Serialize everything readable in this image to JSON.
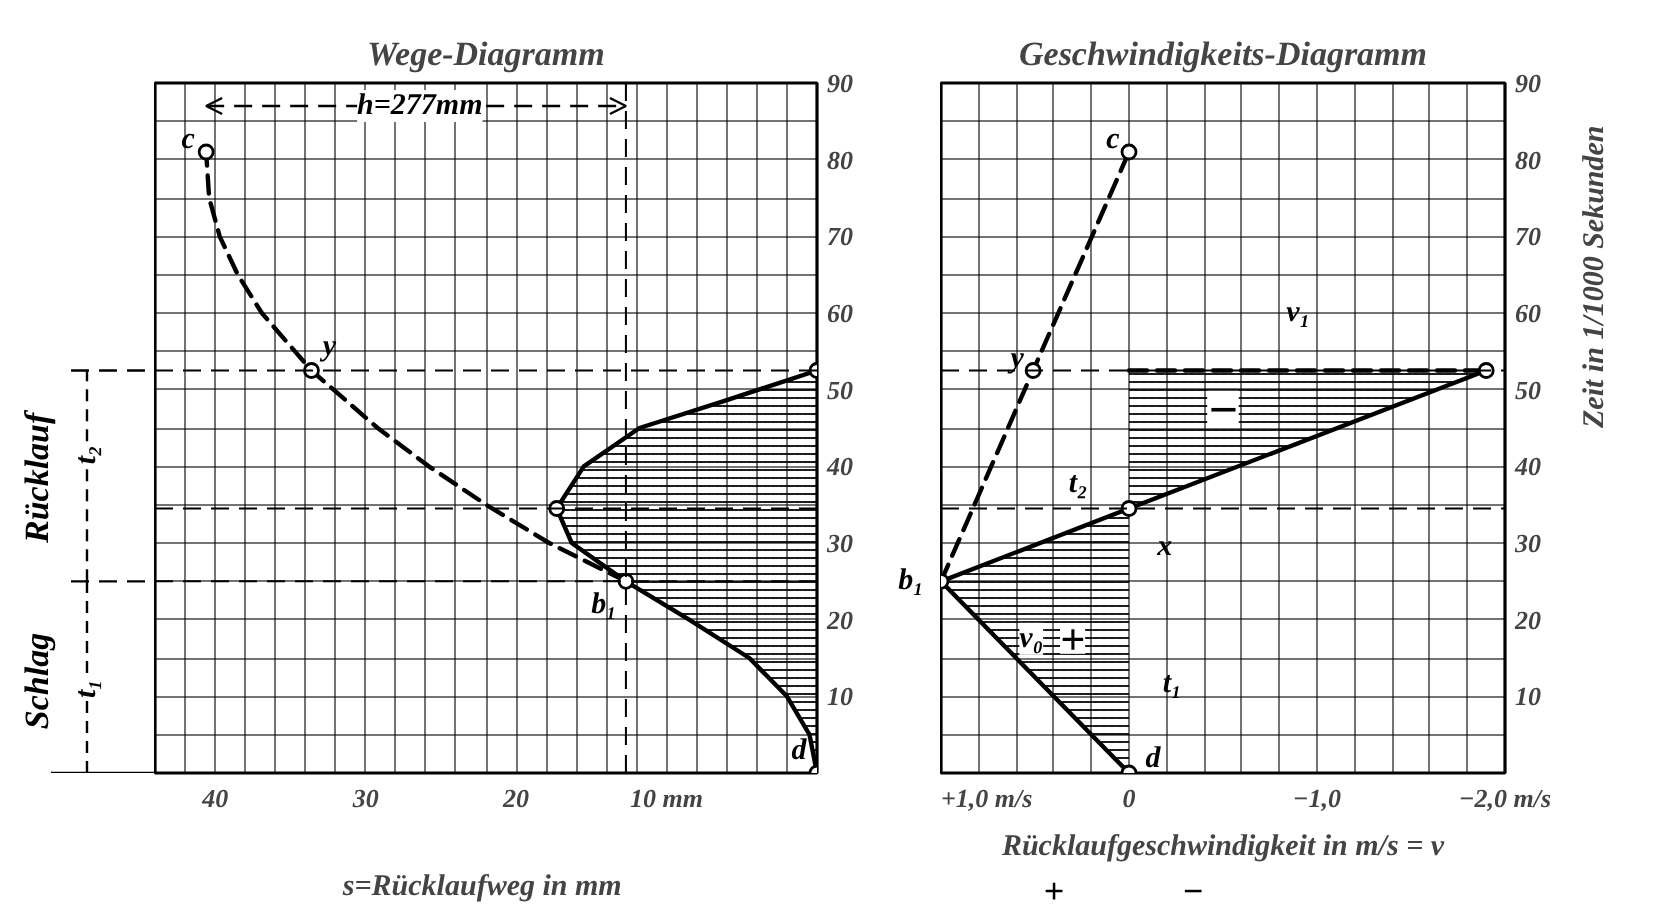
{
  "chart_data": [
    {
      "type": "line",
      "title": "Wege-Diagramm",
      "xlabel": "s=Rücklaufweg  in mm",
      "orientation": "horizontal",
      "grid": true,
      "xlim": [
        44,
        0
      ],
      "xticks": [
        {
          "value": 0,
          "label": null
        },
        {
          "value": 2,
          "label": null
        },
        {
          "value": 4,
          "label": null
        },
        {
          "value": 6,
          "label": null
        },
        {
          "value": 8,
          "label": null
        },
        {
          "value": 10,
          "label": "10 mm"
        },
        {
          "value": 12,
          "label": null
        },
        {
          "value": 14,
          "label": null
        },
        {
          "value": 16,
          "label": null
        },
        {
          "value": 18,
          "label": null
        },
        20,
        {
          "value": 22,
          "label": null
        },
        {
          "value": 24,
          "label": null
        },
        {
          "value": 26,
          "label": null
        },
        {
          "value": 28,
          "label": null
        },
        30,
        {
          "value": 32,
          "label": null
        },
        {
          "value": 34,
          "label": null
        },
        {
          "value": 36,
          "label": null
        },
        {
          "value": 38,
          "label": null
        },
        40,
        {
          "value": 42,
          "label": null
        },
        {
          "value": 44,
          "label": null
        }
      ],
      "ylim": [
        0,
        90
      ],
      "yticks": [
        {
          "value": 0,
          "label": null
        },
        {
          "value": 5,
          "label": null
        },
        10,
        {
          "value": 15,
          "label": null
        },
        20,
        {
          "value": 25,
          "label": null
        },
        30,
        {
          "value": 35,
          "label": null
        },
        40,
        {
          "value": 45,
          "label": null
        },
        50,
        {
          "value": 55,
          "label": null
        },
        60,
        {
          "value": 65,
          "label": null
        },
        70,
        {
          "value": 75,
          "label": null
        },
        80,
        {
          "value": 85,
          "label": null
        },
        90
      ],
      "series": [
        {
          "type": "area",
          "color": "#000000",
          "line_style": "solid",
          "marker": "none",
          "x": [
            0,
            5,
            10,
            15,
            20,
            25,
            30,
            34.5,
            40,
            45,
            48.5,
            52.5
          ],
          "values": [
            0,
            0.5,
            2,
            4.5,
            8.5,
            12.7,
            16.3,
            17.3,
            15.5,
            11.8,
            6.2,
            0
          ]
        },
        {
          "color": "#000000",
          "line_style": "dashed",
          "marker": "none",
          "x": [
            25,
            30,
            35,
            40,
            45,
            52.5,
            60,
            65,
            70,
            75,
            81
          ],
          "values": [
            12.7,
            17.8,
            22,
            25.8,
            29.2,
            33.6,
            36.9,
            38.5,
            39.7,
            40.4,
            40.6
          ]
        },
        {
          "type": "scatter",
          "color": "#000000",
          "marker": "circle",
          "x": [
            0,
            25,
            34.5,
            52.5,
            52.5,
            81
          ],
          "values": [
            0,
            12.7,
            17.3,
            0,
            33.6,
            40.6
          ]
        }
      ],
      "ref_lines": [
        {
          "axis": "y",
          "value": 52.5,
          "line_style": "dashed"
        },
        {
          "axis": "y",
          "value": 34.5,
          "line_style": "dashed"
        },
        {
          "axis": "y",
          "value": 25,
          "line_style": "dashed"
        },
        {
          "axis": "x",
          "value": 12.7,
          "line_style": "dashed"
        }
      ],
      "annotations": [
        "h=277mm",
        {
          "text": "c",
          "x": 40.6,
          "y": 81
        },
        {
          "text": "y",
          "x": 33.6,
          "y": 52.5
        },
        {
          "text": "b₁",
          "x": 12.7,
          "y": 25
        },
        {
          "text": "d",
          "x": 0,
          "y": 0
        },
        "Schlag",
        "t₁",
        "Rücklauf",
        "t₂"
      ]
    },
    {
      "type": "line",
      "title": "Geschwindigkeits-Diagramm",
      "xlabel": "Rücklaufgeschwindigkeit in m/s = v",
      "ylabel": "Zeit  in 1/1000 Sekunden",
      "orientation": "horizontal",
      "grid": true,
      "xlim": [
        1.0,
        -2.0
      ],
      "xticks": [
        {
          "value": 1.0,
          "label": "+1,0 m/s"
        },
        {
          "value": 0.8,
          "label": null
        },
        {
          "value": 0.6,
          "label": null
        },
        {
          "value": 0.4,
          "label": null
        },
        {
          "value": 0.2,
          "label": null
        },
        0,
        {
          "value": -0.2,
          "label": null
        },
        {
          "value": -0.4,
          "label": null
        },
        {
          "value": -0.6,
          "label": null
        },
        {
          "value": -0.8,
          "label": null
        },
        {
          "value": -1.0,
          "label": "−1,0"
        },
        {
          "value": -1.2,
          "label": null
        },
        {
          "value": -1.4,
          "label": null
        },
        {
          "value": -1.6,
          "label": null
        },
        {
          "value": -1.8,
          "label": null
        },
        {
          "value": -2.0,
          "label": "−2,0 m/s"
        }
      ],
      "ylim": [
        0,
        90
      ],
      "yticks": [
        {
          "value": 0,
          "label": null
        },
        {
          "value": 5,
          "label": null
        },
        10,
        {
          "value": 15,
          "label": null
        },
        20,
        {
          "value": 25,
          "label": null
        },
        30,
        {
          "value": 35,
          "label": null
        },
        40,
        {
          "value": 45,
          "label": null
        },
        50,
        {
          "value": 55,
          "label": null
        },
        60,
        {
          "value": 65,
          "label": null
        },
        70,
        {
          "value": 75,
          "label": null
        },
        80,
        {
          "value": 85,
          "label": null
        },
        90
      ],
      "series": [
        {
          "type": "area",
          "color": "#000000",
          "line_style": "solid",
          "marker": "none",
          "x": [
            0,
            25,
            34.5,
            52.5
          ],
          "values": [
            0,
            1.0,
            0,
            -1.9
          ]
        },
        {
          "color": "#000000",
          "line_style": "dashed",
          "marker": "none",
          "x": [
            52.5,
            52.5
          ],
          "values": [
            0,
            -1.9
          ]
        },
        {
          "color": "#000000",
          "line_style": "dashed",
          "marker": "none",
          "x": [
            25,
            52.5,
            81
          ],
          "values": [
            1.0,
            0.51,
            0
          ]
        },
        {
          "type": "scatter",
          "color": "#000000",
          "marker": "circle",
          "x": [
            0,
            25,
            34.5,
            52.5,
            52.5,
            81
          ],
          "values": [
            0,
            1.0,
            0,
            -1.9,
            0.51,
            0
          ]
        }
      ],
      "ref_lines": [
        {
          "axis": "y",
          "value": 52.5,
          "line_style": "dashed"
        },
        {
          "axis": "y",
          "value": 34.5,
          "line_style": "dashed"
        }
      ],
      "annotations": [
        {
          "text": "c",
          "x": 0,
          "y": 81
        },
        {
          "text": "y",
          "x": 0.51,
          "y": 52.5
        },
        {
          "text": "b₁",
          "x": 1.0,
          "y": 25
        },
        {
          "text": "d",
          "x": 0,
          "y": 0
        },
        "v₁",
        "−",
        "t₂",
        "x",
        "v₀",
        "+",
        "t₁",
        "+",
        "−"
      ]
    }
  ]
}
